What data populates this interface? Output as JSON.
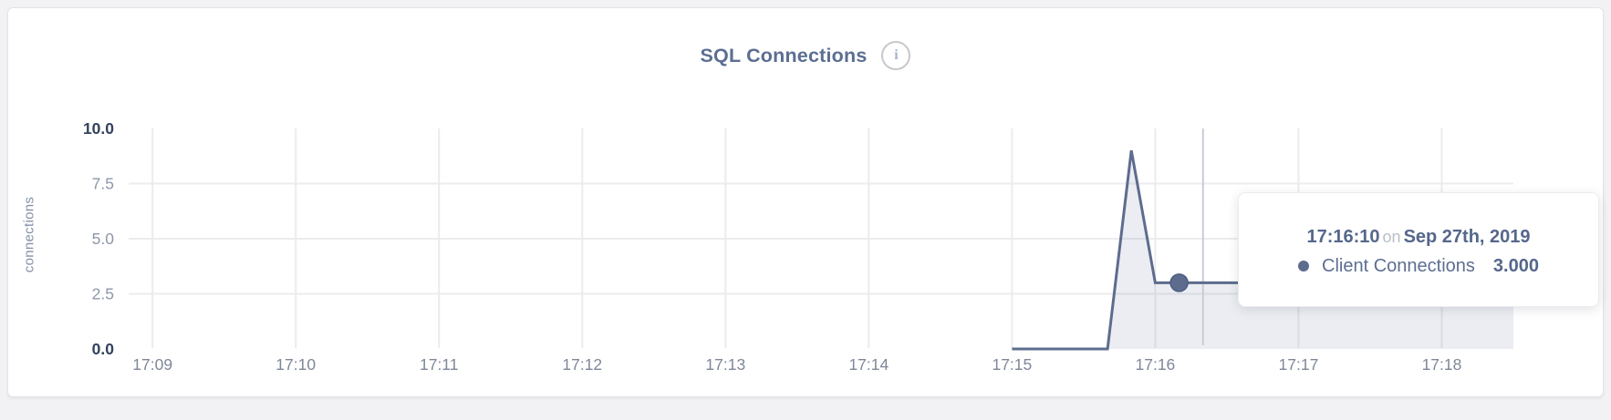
{
  "page": {
    "background": "#f2f2f4"
  },
  "card": {
    "title": "SQL Connections"
  },
  "tooltip": {
    "time": "17:16:10",
    "on_word": "on",
    "date": "Sep 27th, 2019",
    "series": "Client Connections",
    "value": "3.000"
  },
  "chart_data": {
    "type": "line",
    "title": "SQL Connections",
    "xlabel": "",
    "ylabel": "connections",
    "ylim": [
      0,
      10
    ],
    "grid": true,
    "legend_position": "none",
    "x_domain": {
      "start_time": "17:08:50",
      "end_time": "17:18:30",
      "span_seconds": 580
    },
    "x_ticks": [
      {
        "label": "17:09",
        "s": 10
      },
      {
        "label": "17:10",
        "s": 70
      },
      {
        "label": "17:11",
        "s": 130
      },
      {
        "label": "17:12",
        "s": 190
      },
      {
        "label": "17:13",
        "s": 250
      },
      {
        "label": "17:14",
        "s": 310
      },
      {
        "label": "17:15",
        "s": 370
      },
      {
        "label": "17:16",
        "s": 430
      },
      {
        "label": "17:17",
        "s": 490
      },
      {
        "label": "17:18",
        "s": 550
      }
    ],
    "y_ticks": [
      {
        "label": "10.0",
        "value": 10,
        "emphasis": true
      },
      {
        "label": "7.5",
        "value": 7.5,
        "emphasis": false
      },
      {
        "label": "5.0",
        "value": 5,
        "emphasis": false
      },
      {
        "label": "2.5",
        "value": 2.5,
        "emphasis": false
      },
      {
        "label": "0.0",
        "value": 0,
        "emphasis": true
      }
    ],
    "series": [
      {
        "name": "Client Connections",
        "color": "#5d6c8e",
        "fill": "rgba(93,109,144,0.12)",
        "points": [
          {
            "time": "17:15:00",
            "s": 370,
            "value": 0
          },
          {
            "time": "17:15:40",
            "s": 410,
            "value": 0
          },
          {
            "time": "17:15:50",
            "s": 420,
            "value": 9
          },
          {
            "time": "17:16:00",
            "s": 430,
            "value": 3
          },
          {
            "time": "17:18:30",
            "s": 580,
            "value": 3
          }
        ]
      }
    ],
    "hover": {
      "time": "17:16:10",
      "s": 440,
      "value": 3,
      "crosshair_s": 450
    },
    "colors": {
      "grid": "#ececee",
      "crosshair": "#c8ccd4",
      "y_tick_strong": "#33425e",
      "y_tick_weak": "#8d96aa",
      "x_tick": "#7e8798"
    }
  }
}
